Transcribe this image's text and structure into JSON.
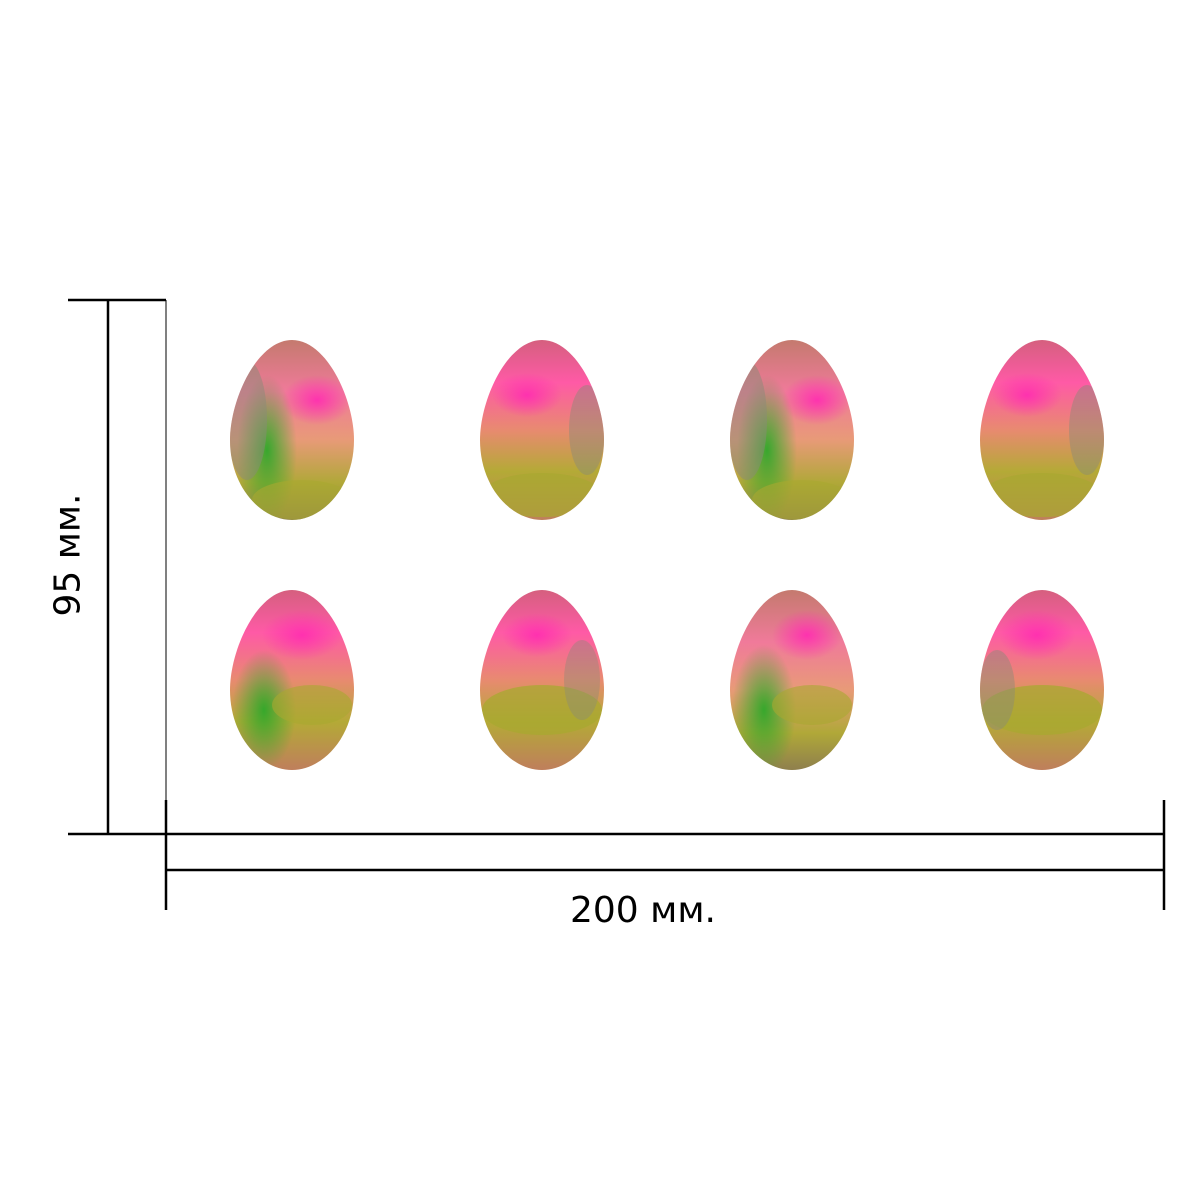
{
  "dimensions": {
    "width_label": "200 мм.",
    "height_label": "95 мм."
  },
  "sheet": {
    "background": "#ffffff",
    "rows": 2,
    "columns": 4,
    "sticker_shape": "egg"
  },
  "colors": {
    "line": "#000000",
    "pink": "#ff4fa0",
    "magenta": "#ff2fb0",
    "peach": "#f0a080",
    "olive": "#a8a830",
    "green": "#3aa030",
    "gray": "#8a8a78"
  }
}
